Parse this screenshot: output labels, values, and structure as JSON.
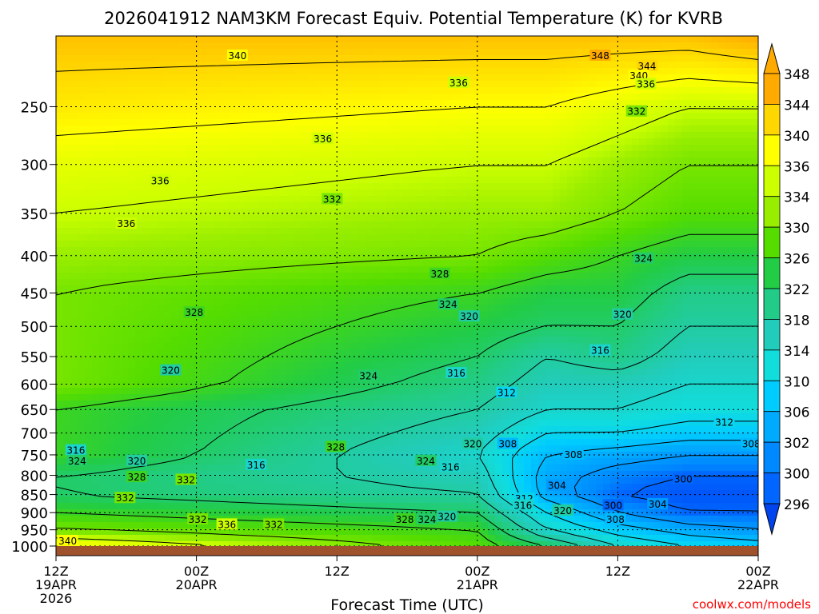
{
  "title": "2026041912 NAM3KM Forecast Equiv. Potential Temperature (K) for KVRB",
  "xlabel": "Forecast Time (UTC)",
  "credit": "coolwx.com/models",
  "colors": {
    "ground": "#a0522d",
    "credit": "#ff0000"
  },
  "chart_data": {
    "type": "heatmap",
    "title": "2026041912 NAM3KM Forecast Equiv. Potential Temperature (K) for KVRB",
    "xlabel": "Forecast Time (UTC)",
    "ylabel": "",
    "x_range_hours": [
      0,
      60
    ],
    "y_scale": "log-pressure",
    "y_range_hPa": [
      1000,
      200
    ],
    "y_ticks": [
      {
        "label": "250",
        "p": 250
      },
      {
        "label": "300",
        "p": 300
      },
      {
        "label": "350",
        "p": 350
      },
      {
        "label": "400",
        "p": 400
      },
      {
        "label": "450",
        "p": 450
      },
      {
        "label": "500",
        "p": 500
      },
      {
        "label": "550",
        "p": 550
      },
      {
        "label": "600",
        "p": 600
      },
      {
        "label": "650",
        "p": 650
      },
      {
        "label": "700",
        "p": 700
      },
      {
        "label": "750",
        "p": 750
      },
      {
        "label": "800",
        "p": 800
      },
      {
        "label": "850",
        "p": 850
      },
      {
        "label": "900",
        "p": 900
      },
      {
        "label": "950",
        "p": 950
      },
      {
        "label": "1000",
        "p": 1000
      }
    ],
    "x_ticks": [
      {
        "hour": 0,
        "lines": [
          "12Z",
          "19APR",
          "2026"
        ]
      },
      {
        "hour": 12,
        "lines": [
          "00Z",
          "20APR"
        ]
      },
      {
        "hour": 24,
        "lines": [
          "12Z"
        ]
      },
      {
        "hour": 36,
        "lines": [
          "00Z",
          "21APR"
        ]
      },
      {
        "hour": 48,
        "lines": [
          "12Z"
        ]
      },
      {
        "hour": 60,
        "lines": [
          "00Z",
          "22APR"
        ]
      }
    ],
    "grid": true,
    "colorbar": {
      "labels": [
        "348",
        "344",
        "340",
        "336",
        "334",
        "330",
        "326",
        "322",
        "318",
        "314",
        "310",
        "306",
        "302",
        "300",
        "296"
      ],
      "colors": [
        "#ffaa00",
        "#ffd700",
        "#ffff00",
        "#ccff00",
        "#99ee00",
        "#55dd00",
        "#22cc44",
        "#22cc88",
        "#22ccbb",
        "#11dddd",
        "#00ccff",
        "#00aaff",
        "#0088ff",
        "#0066ff",
        "#0044ee"
      ]
    },
    "field_profiles": {
      "pressure_hPa": [
        1000,
        950,
        900,
        850,
        800,
        750,
        700,
        650,
        600,
        550,
        500,
        450,
        400,
        350,
        300,
        250,
        200
      ],
      "hours": [
        0,
        36,
        42,
        48,
        54,
        60
      ],
      "theta_e_K": [
        [
          340,
          332,
          328,
          324,
          324,
          328,
          328,
          328,
          332,
          332,
          332,
          332,
          334,
          336,
          338,
          342,
          346
        ],
        [
          330,
          328,
          324,
          320,
          318,
          316,
          318,
          320,
          322,
          324,
          326,
          328,
          332,
          334,
          336,
          340,
          346
        ],
        [
          324,
          316,
          312,
          306,
          306,
          308,
          312,
          316,
          318,
          320,
          324,
          326,
          330,
          334,
          336,
          340,
          346
        ],
        [
          316,
          310,
          304,
          300,
          302,
          306,
          312,
          316,
          318,
          322,
          324,
          326,
          328,
          332,
          334,
          338,
          346
        ],
        [
          312,
          306,
          300,
          298,
          300,
          304,
          310,
          314,
          316,
          318,
          320,
          322,
          326,
          330,
          332,
          336,
          346
        ],
        [
          310,
          304,
          300,
          298,
          300,
          304,
          310,
          314,
          316,
          318,
          320,
          322,
          326,
          330,
          332,
          336,
          348
        ]
      ]
    },
    "contour_labels": [
      {
        "text": "340",
        "hour": 15.5,
        "p": 213
      },
      {
        "text": "348",
        "hour": 46.5,
        "p": 213
      },
      {
        "text": "344",
        "hour": 50.5,
        "p": 220
      },
      {
        "text": "340",
        "hour": 49.8,
        "p": 227
      },
      {
        "text": "336",
        "hour": 50.4,
        "p": 233
      },
      {
        "text": "336",
        "hour": 34.4,
        "p": 232
      },
      {
        "text": "332",
        "hour": 49.6,
        "p": 254
      },
      {
        "text": "336",
        "hour": 22.8,
        "p": 277
      },
      {
        "text": "336",
        "hour": 8.9,
        "p": 316
      },
      {
        "text": "332",
        "hour": 23.6,
        "p": 335
      },
      {
        "text": "336",
        "hour": 6.0,
        "p": 362
      },
      {
        "text": "324",
        "hour": 50.2,
        "p": 404
      },
      {
        "text": "328",
        "hour": 32.8,
        "p": 424
      },
      {
        "text": "328",
        "hour": 11.8,
        "p": 479
      },
      {
        "text": "324",
        "hour": 33.5,
        "p": 467
      },
      {
        "text": "320",
        "hour": 35.3,
        "p": 485
      },
      {
        "text": "320",
        "hour": 48.4,
        "p": 482
      },
      {
        "text": "316",
        "hour": 46.5,
        "p": 540
      },
      {
        "text": "320",
        "hour": 9.8,
        "p": 575
      },
      {
        "text": "316",
        "hour": 34.2,
        "p": 580
      },
      {
        "text": "324",
        "hour": 26.7,
        "p": 585
      },
      {
        "text": "312",
        "hour": 38.5,
        "p": 617
      },
      {
        "text": "312",
        "hour": 57.1,
        "p": 677
      },
      {
        "text": "320",
        "hour": 35.6,
        "p": 725
      },
      {
        "text": "308",
        "hour": 38.6,
        "p": 725
      },
      {
        "text": "308",
        "hour": 59.4,
        "p": 725
      },
      {
        "text": "328",
        "hour": 23.9,
        "p": 732
      },
      {
        "text": "308",
        "hour": 44.2,
        "p": 750
      },
      {
        "text": "316",
        "hour": 1.7,
        "p": 740
      },
      {
        "text": "324",
        "hour": 1.8,
        "p": 765
      },
      {
        "text": "320",
        "hour": 6.9,
        "p": 765
      },
      {
        "text": "316",
        "hour": 17.1,
        "p": 775
      },
      {
        "text": "324",
        "hour": 31.6,
        "p": 765
      },
      {
        "text": "316",
        "hour": 33.7,
        "p": 780
      },
      {
        "text": "328",
        "hour": 6.9,
        "p": 805
      },
      {
        "text": "332",
        "hour": 11.1,
        "p": 812
      },
      {
        "text": "300",
        "hour": 53.6,
        "p": 810
      },
      {
        "text": "304",
        "hour": 42.8,
        "p": 827
      },
      {
        "text": "332",
        "hour": 5.9,
        "p": 860
      },
      {
        "text": "312",
        "hour": 40.0,
        "p": 862
      },
      {
        "text": "304",
        "hour": 51.4,
        "p": 877
      },
      {
        "text": "316",
        "hour": 39.9,
        "p": 880
      },
      {
        "text": "300",
        "hour": 47.6,
        "p": 880
      },
      {
        "text": "320",
        "hour": 43.3,
        "p": 895
      },
      {
        "text": "320",
        "hour": 33.4,
        "p": 912
      },
      {
        "text": "308",
        "hour": 47.8,
        "p": 920
      },
      {
        "text": "328",
        "hour": 29.8,
        "p": 920
      },
      {
        "text": "324",
        "hour": 31.7,
        "p": 920
      },
      {
        "text": "332",
        "hour": 12.1,
        "p": 920
      },
      {
        "text": "336",
        "hour": 14.6,
        "p": 935
      },
      {
        "text": "332",
        "hour": 18.6,
        "p": 935
      },
      {
        "text": "340",
        "hour": 1.0,
        "p": 985
      }
    ]
  }
}
